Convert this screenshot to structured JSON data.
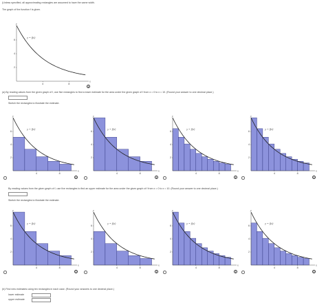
{
  "intro": {
    "line1": "(Unless specified, all approximating rectangles are assumed to have the same width.",
    "line2": "The graph of the function f is given."
  },
  "main_graph": {
    "label": "y = f(x)",
    "y_label": "y",
    "x_label": "x",
    "y_ticks": [
      "6",
      "4",
      "2"
    ],
    "x_ticks": [
      "4",
      "8"
    ]
  },
  "part_a": {
    "question": "(a)   By reading values from the given graph of f, use five rectangles to find a lower estimate for the area under the given graph of f from x = 0 to x = 10. (Round your answer to one decimal place.)",
    "sketch_prompt": "Sketch the rectangles to illustrate the estimate.",
    "answer_value": ""
  },
  "part_b": {
    "question": "By reading values from the given graph of f, use five rectangles to find an upper estimate for the area under the given graph of f from x = 0 to x = 10. (Round your answer to one decimal place.)",
    "sketch_prompt": "Sketch the rectangles to illustrate the estimate.",
    "answer_value": ""
  },
  "graph_option": {
    "label": "y = f(x)",
    "y_label": "y",
    "x_label": "x",
    "y_ticks": [
      "6",
      "4",
      "2"
    ],
    "x_ticks": [
      "4",
      "8"
    ]
  },
  "options_a": [
    {
      "n": 5,
      "type": "right"
    },
    {
      "n": 5,
      "type": "left"
    },
    {
      "n": 10,
      "type": "right"
    },
    {
      "n": 10,
      "type": "left"
    }
  ],
  "options_b": [
    {
      "n": 5,
      "type": "left"
    },
    {
      "n": 5,
      "type": "right"
    },
    {
      "n": 10,
      "type": "left"
    },
    {
      "n": 10,
      "type": "right"
    }
  ],
  "part_c": {
    "question": "(b)   Find new estimates using ten rectangles in each case. (Round your answers to one decimal place.)",
    "lower_label": "lower estimate",
    "upper_label": "upper estimate",
    "lower_value": "",
    "upper_value": ""
  },
  "colors": {
    "bar_fill": "#8c92dc",
    "bar_stroke": "#2a2f7a"
  },
  "icons": {
    "info": "info-circle-icon",
    "radio": "radio-button"
  }
}
